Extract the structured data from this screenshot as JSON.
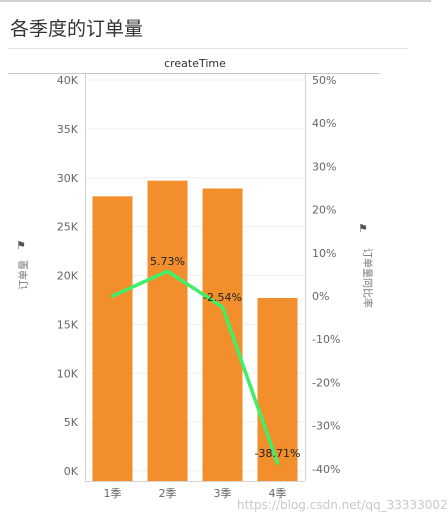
{
  "page": {
    "title": "各季度的订单量",
    "watermark": "https://blog.csdn.net/qq_33333002"
  },
  "chart_data": {
    "type": "bar",
    "header": "createTime",
    "categories": [
      "1季",
      "2季",
      "3季",
      "4季"
    ],
    "series": [
      {
        "axis": "left",
        "type": "bar",
        "color": "#f28e2b",
        "values": [
          28100,
          29700,
          28900,
          17700
        ]
      },
      {
        "axis": "right",
        "type": "line",
        "color": "#3ef067",
        "values": [
          0.0,
          5.73,
          -2.54,
          -38.71
        ],
        "labels": [
          "",
          "5.73%",
          "-2.54%",
          "-38.71%"
        ]
      }
    ],
    "y_left": {
      "label": "订单量",
      "min": 0,
      "max": 40000,
      "ticks": [
        0,
        5000,
        10000,
        15000,
        20000,
        25000,
        30000,
        35000,
        40000
      ],
      "tick_labels": [
        "0K",
        "5K",
        "10K",
        "15K",
        "20K",
        "25K",
        "30K",
        "35K",
        "40K"
      ]
    },
    "y_right": {
      "label": "订单量同比率",
      "min": -40,
      "max": 50,
      "ticks": [
        -40,
        -30,
        -20,
        -10,
        0,
        10,
        20,
        30,
        40,
        50
      ],
      "tick_labels": [
        "-40%",
        "-30%",
        "-20%",
        "-10%",
        "0%",
        "10%",
        "20%",
        "30%",
        "40%",
        "50%"
      ]
    },
    "grid": true
  }
}
